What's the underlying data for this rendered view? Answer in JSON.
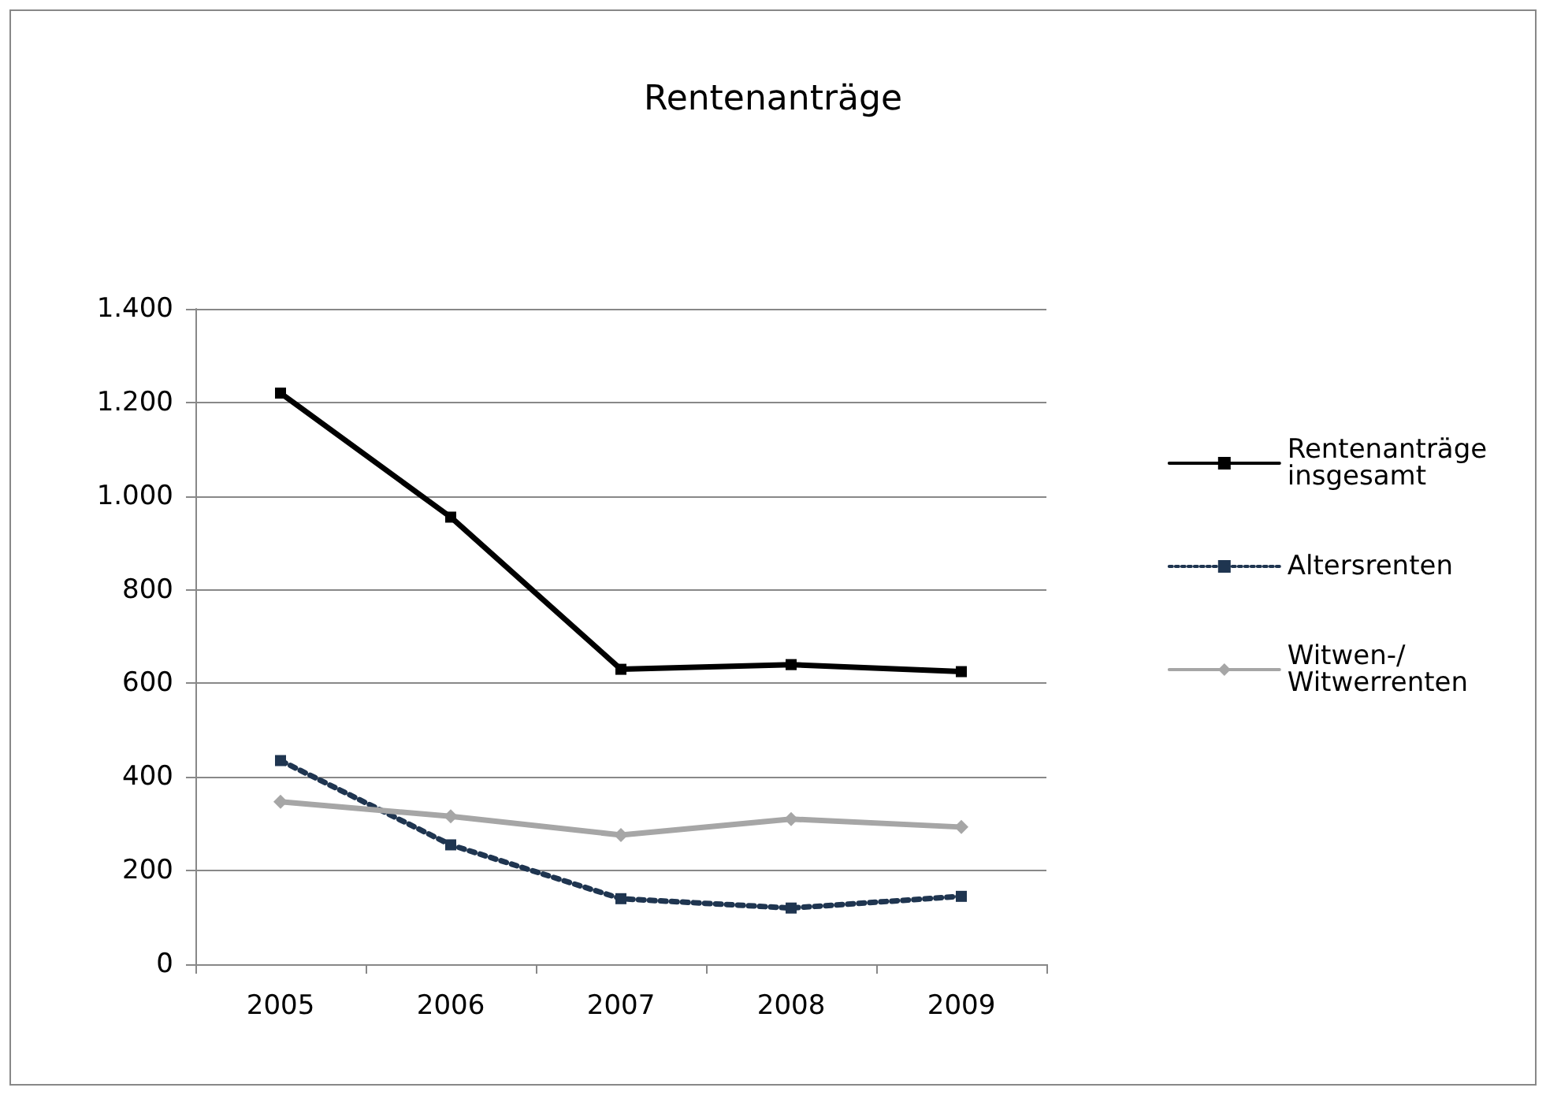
{
  "chart_data": {
    "type": "line",
    "title": "Rentenanträge",
    "categories": [
      "2005",
      "2006",
      "2007",
      "2008",
      "2009"
    ],
    "series": [
      {
        "name": "Rentenanträge insgesamt",
        "color": "#000000",
        "values": [
          1220,
          955,
          630,
          640,
          625
        ],
        "marker": "square",
        "line_style": "solid"
      },
      {
        "name": "Altersrenten",
        "color": "#1f3550",
        "values": [
          435,
          255,
          140,
          120,
          145
        ],
        "marker": "square",
        "line_style": "dotted"
      },
      {
        "name": "Witwen-/ Witwerrenten",
        "color": "#a6a6a6",
        "values": [
          347,
          316,
          276,
          310,
          293
        ],
        "marker": "diamond",
        "line_style": "solid"
      }
    ],
    "ylim": [
      0,
      1400
    ],
    "yticks": [
      {
        "value": 0,
        "label": "0"
      },
      {
        "value": 200,
        "label": "200"
      },
      {
        "value": 400,
        "label": "400"
      },
      {
        "value": 600,
        "label": "600"
      },
      {
        "value": 800,
        "label": "800"
      },
      {
        "value": 1000,
        "label": "1.000"
      },
      {
        "value": 1200,
        "label": "1.200"
      },
      {
        "value": 1400,
        "label": "1.400"
      }
    ],
    "grid": "y",
    "legend": "right"
  }
}
